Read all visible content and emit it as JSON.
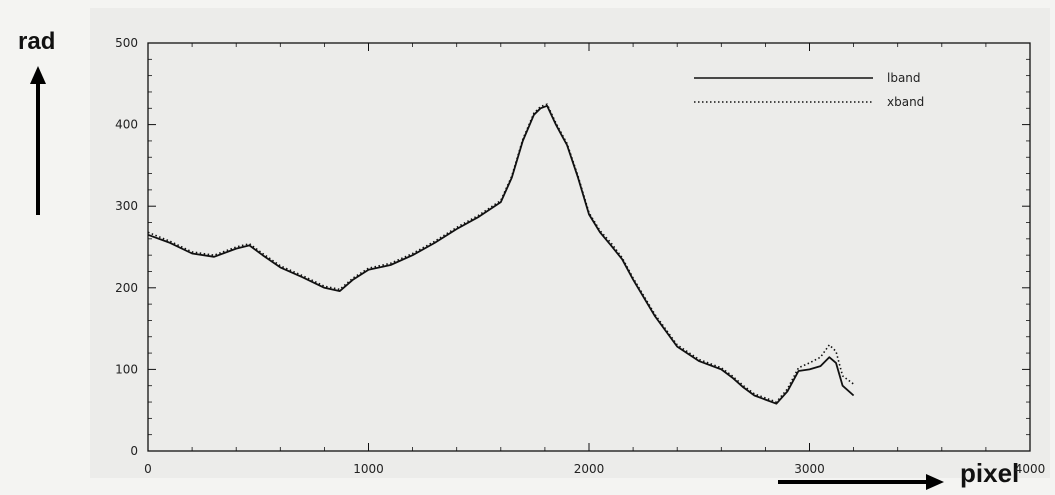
{
  "chart_data": {
    "type": "line",
    "xlabel": "pixel",
    "ylabel": "rad",
    "xlim": [
      0,
      4000
    ],
    "ylim": [
      0,
      500
    ],
    "xticks": [
      "0",
      "1000",
      "2000",
      "3000",
      "4000"
    ],
    "yticks": [
      "0",
      "100",
      "200",
      "300",
      "400",
      "500"
    ],
    "legend_position": "top-right",
    "grid": false,
    "series": [
      {
        "name": "lband",
        "style": "solid",
        "x": [
          0,
          100,
          200,
          300,
          400,
          460,
          520,
          600,
          700,
          800,
          870,
          930,
          1000,
          1100,
          1200,
          1300,
          1400,
          1500,
          1600,
          1650,
          1700,
          1750,
          1780,
          1810,
          1850,
          1880,
          1900,
          1950,
          2000,
          2050,
          2100,
          2150,
          2200,
          2300,
          2400,
          2500,
          2600,
          2650,
          2700,
          2750,
          2800,
          2850,
          2900,
          2950,
          3000,
          3050,
          3090,
          3120,
          3150,
          3200
        ],
        "values": [
          265,
          255,
          242,
          238,
          248,
          252,
          240,
          225,
          213,
          200,
          196,
          210,
          222,
          228,
          240,
          255,
          272,
          287,
          305,
          335,
          380,
          412,
          420,
          423,
          400,
          385,
          375,
          335,
          290,
          268,
          252,
          235,
          210,
          165,
          128,
          110,
          100,
          90,
          78,
          68,
          63,
          58,
          73,
          98,
          100,
          104,
          115,
          108,
          80,
          68
        ]
      },
      {
        "name": "xband",
        "style": "dotted",
        "x": [
          0,
          100,
          200,
          300,
          400,
          460,
          520,
          600,
          700,
          800,
          870,
          930,
          1000,
          1100,
          1200,
          1300,
          1400,
          1500,
          1600,
          1650,
          1700,
          1750,
          1780,
          1810,
          1850,
          1880,
          1900,
          1950,
          2000,
          2050,
          2100,
          2150,
          2200,
          2300,
          2400,
          2500,
          2600,
          2650,
          2700,
          2750,
          2800,
          2850,
          2900,
          2950,
          3000,
          3050,
          3090,
          3120,
          3150,
          3200
        ],
        "values": [
          268,
          257,
          244,
          240,
          250,
          254,
          242,
          227,
          215,
          202,
          198,
          212,
          224,
          230,
          242,
          257,
          274,
          289,
          307,
          337,
          382,
          414,
          422,
          425,
          402,
          387,
          377,
          337,
          292,
          270,
          255,
          237,
          212,
          167,
          130,
          112,
          102,
          92,
          80,
          70,
          65,
          60,
          76,
          102,
          108,
          115,
          130,
          122,
          92,
          82
        ]
      }
    ]
  }
}
